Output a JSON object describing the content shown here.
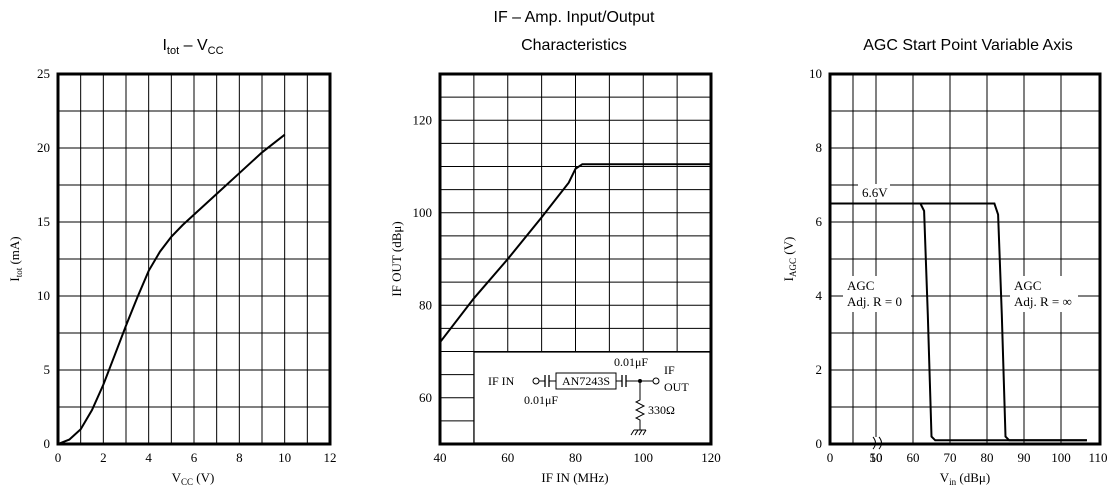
{
  "chart_data": [
    {
      "type": "line",
      "title": {
        "main": "I",
        "sub": "tot",
        "mid": " – V",
        "sub2": "CC"
      },
      "xlabel": {
        "main": "V",
        "sub": "CC",
        "rest": " (V)"
      },
      "ylabel": {
        "main": "I",
        "sub": "tot",
        "rest": " (mA)"
      },
      "xlim": [
        0,
        12
      ],
      "ylim": [
        0,
        25
      ],
      "grid": true,
      "x_ticks": [
        "0",
        "2",
        "4",
        "6",
        "8",
        "10",
        "12"
      ],
      "y_ticks": [
        "0",
        "5",
        "10",
        "15",
        "20",
        "25"
      ],
      "series": [
        {
          "x": [
            0,
            0.5,
            1,
            1.5,
            2,
            2.5,
            3,
            3.5,
            4,
            4.5,
            5,
            5.5,
            6,
            7,
            8,
            9,
            10
          ],
          "y": [
            0,
            0.3,
            1.0,
            2.3,
            4.0,
            6.0,
            8.0,
            9.9,
            11.7,
            13.0,
            14.0,
            14.8,
            15.5,
            16.9,
            18.3,
            19.7,
            20.9
          ]
        }
      ]
    },
    {
      "type": "line",
      "title": {
        "line1": "IF – Amp. Input/Output",
        "line2": "Characteristics"
      },
      "xlabel": "IF IN (MHz)",
      "ylabel": "IF OUT (dBμ)",
      "xlim": [
        40,
        120
      ],
      "ylim": [
        50,
        130
      ],
      "grid": true,
      "x_ticks": [
        "40",
        "60",
        "80",
        "100",
        "120"
      ],
      "y_ticks": [
        "60",
        "80",
        "100",
        "120"
      ],
      "series": [
        {
          "x": [
            40,
            50,
            60,
            70,
            78,
            80,
            82,
            90,
            100,
            120
          ],
          "y": [
            72,
            81.5,
            90,
            99,
            106.5,
            109.5,
            110.5,
            110.5,
            110.5,
            110.5
          ]
        }
      ],
      "inset": {
        "in_label": "IF IN",
        "ic_label": "AN7243S",
        "cap_in": "0.01μF",
        "cap_out": "0.01μF",
        "out_line1": "IF",
        "out_line2": "OUT",
        "resistor": "330Ω"
      }
    },
    {
      "type": "line",
      "title": "AGC Start Point Variable Axis",
      "xlabel": {
        "main": "V",
        "sub": "in",
        "rest": " (dBμ)"
      },
      "ylabel": {
        "main": "I",
        "sub": "AGC",
        "rest": " (V)"
      },
      "ylim": [
        0,
        10
      ],
      "grid": true,
      "x_ticks": [
        "0",
        "10",
        "50",
        "60",
        "70",
        "80",
        "90",
        "100",
        "110"
      ],
      "y_ticks": [
        "0",
        "2",
        "4",
        "6",
        "8",
        "10"
      ],
      "series": [
        {
          "name": "AGC Adj. R = 0",
          "x": [
            0,
            10,
            50,
            60,
            62,
            63,
            64,
            65,
            66,
            107
          ],
          "y": [
            6.5,
            6.5,
            6.5,
            6.5,
            6.5,
            6.3,
            3.5,
            0.2,
            0.1,
            0.1
          ]
        },
        {
          "name": "AGC Adj. R = ∞",
          "x": [
            0,
            10,
            50,
            60,
            70,
            80,
            82,
            83,
            84,
            85,
            86,
            107
          ],
          "y": [
            6.5,
            6.5,
            6.5,
            6.5,
            6.5,
            6.5,
            6.5,
            6.2,
            3.5,
            0.2,
            0.1,
            0.1
          ]
        }
      ],
      "annotations": {
        "level": "6.6V",
        "left_line1": "AGC",
        "left_line2": "Adj. R = 0",
        "right_line1": "AGC",
        "right_line2": "Adj. R = ∞"
      }
    }
  ]
}
